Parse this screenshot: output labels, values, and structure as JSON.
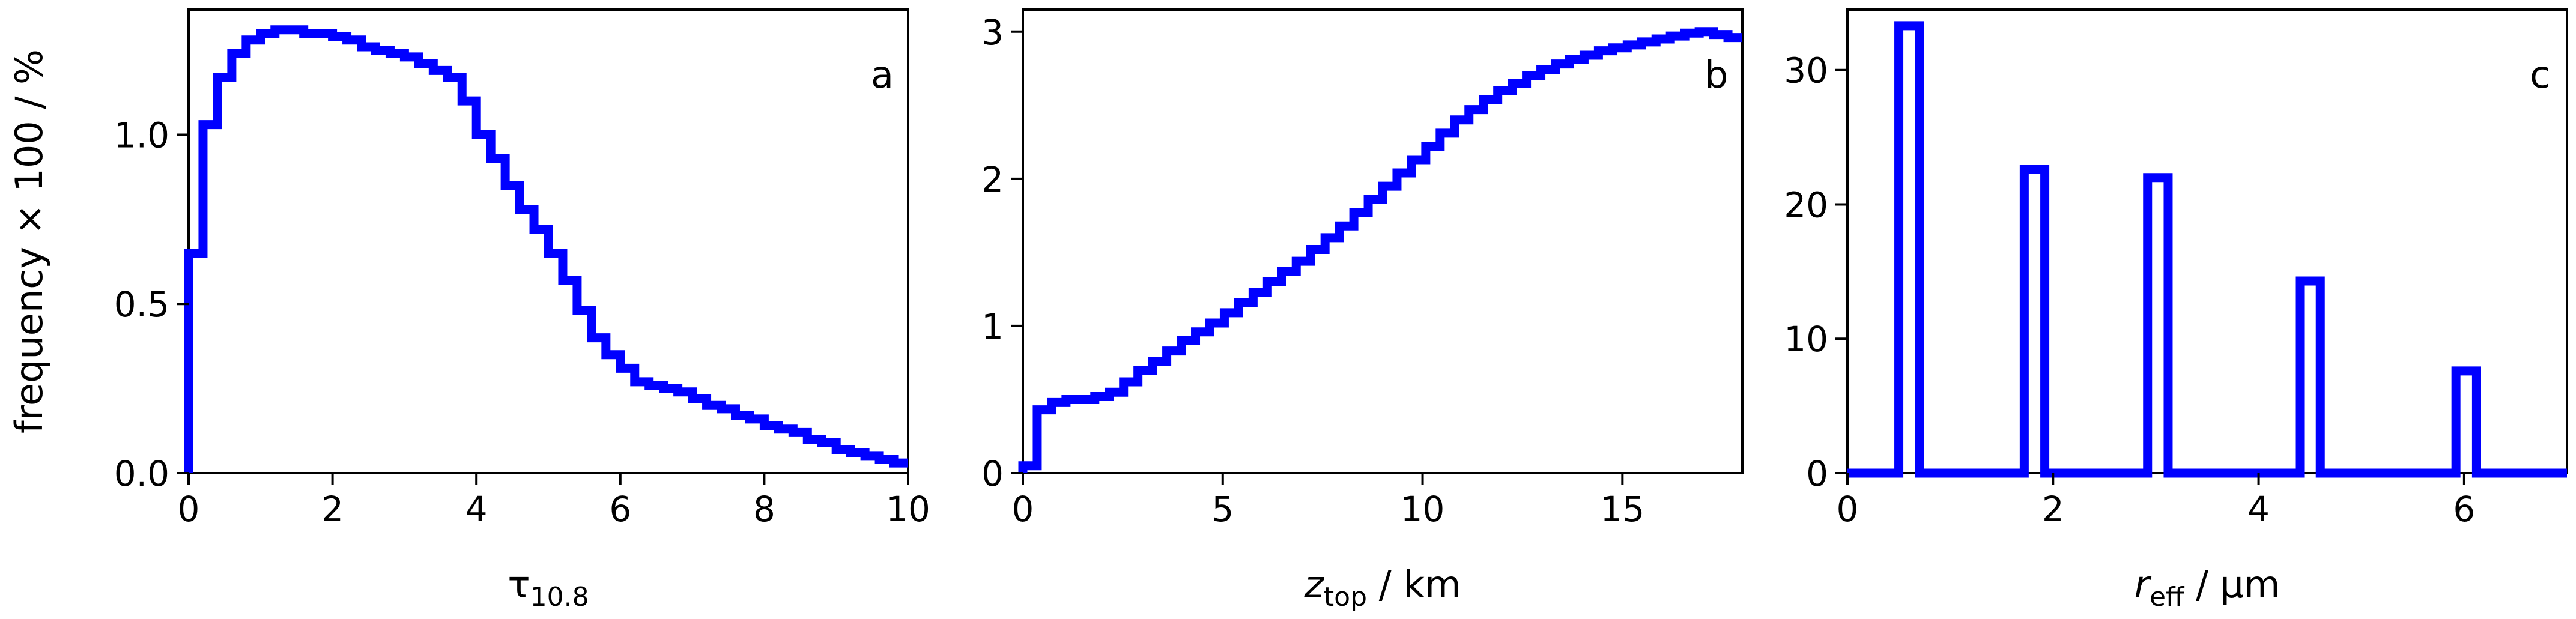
{
  "chart_data": [
    {
      "type": "step",
      "panel_label": "a",
      "ylabel": "frequency × 100 / %",
      "xlabel": {
        "base": "τ",
        "sub": "10.8",
        "unit": ""
      },
      "xlim": [
        0,
        10
      ],
      "ylim": [
        0,
        1.37
      ],
      "xticks": [
        0,
        2,
        4,
        6,
        8,
        10
      ],
      "xtick_labels": [
        "0",
        "2",
        "4",
        "6",
        "8",
        "10"
      ],
      "yticks": [
        0.0,
        0.5,
        1.0
      ],
      "ytick_labels": [
        "0.0",
        "0.5",
        "1.0"
      ],
      "color": "#0000ff",
      "bin_width": 0.2,
      "x_start": 0,
      "values": [
        0.65,
        1.03,
        1.17,
        1.24,
        1.28,
        1.3,
        1.31,
        1.31,
        1.3,
        1.3,
        1.29,
        1.28,
        1.26,
        1.25,
        1.24,
        1.23,
        1.21,
        1.19,
        1.17,
        1.1,
        1.0,
        0.93,
        0.85,
        0.78,
        0.72,
        0.65,
        0.57,
        0.48,
        0.4,
        0.35,
        0.31,
        0.27,
        0.26,
        0.25,
        0.24,
        0.22,
        0.2,
        0.19,
        0.17,
        0.16,
        0.14,
        0.13,
        0.12,
        0.1,
        0.09,
        0.07,
        0.06,
        0.05,
        0.04,
        0.03
      ]
    },
    {
      "type": "step",
      "panel_label": "b",
      "ylabel": "",
      "xlabel": {
        "base": "z",
        "sub": "top",
        "unit": " / km"
      },
      "xlim": [
        0,
        18
      ],
      "ylim": [
        0,
        3.15
      ],
      "xticks": [
        0,
        5,
        10,
        15
      ],
      "xtick_labels": [
        "0",
        "5",
        "10",
        "15"
      ],
      "yticks": [
        0,
        1,
        2,
        3
      ],
      "ytick_labels": [
        "0",
        "1",
        "2",
        "3"
      ],
      "color": "#0000ff",
      "bin_width": 0.36,
      "x_start": 0,
      "values": [
        0.05,
        0.43,
        0.48,
        0.5,
        0.5,
        0.52,
        0.55,
        0.62,
        0.7,
        0.76,
        0.83,
        0.9,
        0.96,
        1.02,
        1.09,
        1.16,
        1.23,
        1.3,
        1.37,
        1.44,
        1.52,
        1.6,
        1.68,
        1.77,
        1.86,
        1.95,
        2.04,
        2.13,
        2.22,
        2.31,
        2.4,
        2.47,
        2.54,
        2.6,
        2.65,
        2.7,
        2.74,
        2.78,
        2.81,
        2.84,
        2.87,
        2.89,
        2.91,
        2.93,
        2.95,
        2.97,
        2.99,
        3.0,
        2.98,
        2.96
      ]
    },
    {
      "type": "step",
      "panel_label": "c",
      "ylabel": "",
      "xlabel": {
        "base": "r",
        "sub": "eff",
        "unit": " / μm"
      },
      "xlim": [
        0,
        7
      ],
      "ylim": [
        0,
        34.5
      ],
      "xticks": [
        0,
        2,
        4,
        6
      ],
      "xtick_labels": [
        "0",
        "2",
        "4",
        "6"
      ],
      "yticks": [
        0,
        10,
        20,
        30
      ],
      "ytick_labels": [
        "0",
        "10",
        "20",
        "30"
      ],
      "color": "#0000ff",
      "bars": [
        {
          "x0": 0.5,
          "x1": 0.7,
          "value": 33.3
        },
        {
          "x0": 1.72,
          "x1": 1.92,
          "value": 22.6
        },
        {
          "x0": 2.92,
          "x1": 3.12,
          "value": 22.0
        },
        {
          "x0": 4.4,
          "x1": 4.6,
          "value": 14.3
        },
        {
          "x0": 5.92,
          "x1": 6.12,
          "value": 7.6
        }
      ]
    }
  ]
}
